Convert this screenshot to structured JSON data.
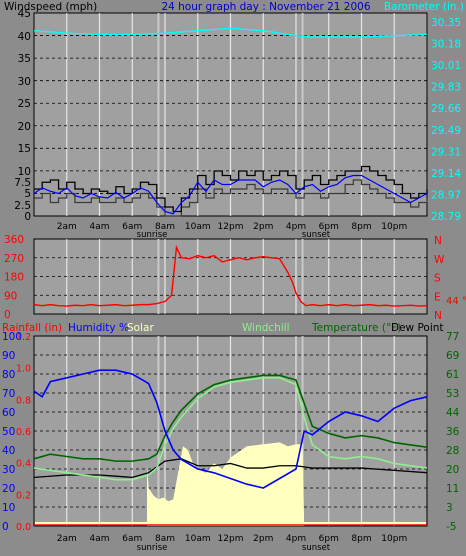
{
  "colors": {
    "background": "#8c8c8c",
    "plot_bg": "#a0a0a0",
    "frame": "#000000",
    "windspeed": "#000000",
    "gust": "#3a3a3a",
    "direction": "#ff0000",
    "barometer": "#00ffff",
    "rainfall": "#ff0000",
    "humidity": "#0000ff",
    "solar": "#ffffc0",
    "windchill": "#90ee90",
    "temperature": "#006400",
    "dewpoint": "#000000",
    "sun_marker": "#c8c8c8",
    "axis_right_top": "#00ffff",
    "axis_right_bottom": "#006400",
    "axis_left_bottom": "#0000ff"
  },
  "header": {
    "left": "Windspeed (mph)",
    "center": "24 hour graph day : November 21 2006",
    "right": "Barometer (in.)"
  },
  "x_axis": {
    "ticks": [
      "2am",
      "4am",
      "6am",
      "8am",
      "10am",
      "12pm",
      "2pm",
      "4pm",
      "6pm",
      "8pm",
      "10pm"
    ],
    "sunrise": "sunrise",
    "sunset": "sunset"
  },
  "direction_panel": {
    "left_ticks": [
      "360",
      "270",
      "180",
      "90",
      "0"
    ],
    "right_labels": [
      "N",
      "W",
      "S",
      "E",
      "N"
    ],
    "current": "44 °"
  },
  "legend": {
    "rainfall": "Rainfall (in)",
    "humidity": "Humidity %",
    "solar": "Solar",
    "windchill": "Windchill",
    "temperature": "Temperature (°F)",
    "dewpoint": "Dew Point"
  },
  "bottom_axes": {
    "humidity": [
      "100",
      "90",
      "80",
      "70",
      "60",
      "50",
      "40",
      "30",
      "20",
      "10",
      "0"
    ],
    "rain": [
      "1.2",
      "1.0",
      "0.8",
      "0.6",
      "0.4",
      "0.2",
      "0.0"
    ],
    "temperature": [
      "77",
      "69",
      "61",
      "53",
      "44",
      "36",
      "28",
      "20",
      "11",
      "3",
      "-5"
    ]
  },
  "chart_data": [
    {
      "type": "line",
      "x_unit": "hour of day",
      "xlim": [
        0,
        24
      ],
      "ylim": [
        0,
        45
      ],
      "y_ticks": [
        "0",
        "2.5",
        "5",
        "7.5",
        "10",
        "15",
        "20",
        "25",
        "30",
        "35",
        "40",
        "45"
      ],
      "right_ylim": [
        28.79,
        30.35
      ],
      "right_ticks": [
        "30.35",
        "30.18",
        "30.01",
        "29.83",
        "29.66",
        "29.49",
        "29.31",
        "29.14",
        "28.97",
        "28.79"
      ],
      "series": [
        {
          "name": "Windspeed (mph)",
          "axis": "left",
          "x": [
            0,
            0.5,
            1,
            1.5,
            2,
            2.5,
            3,
            3.5,
            4,
            4.5,
            5,
            5.5,
            6,
            6.5,
            7,
            7.5,
            8,
            8.5,
            9,
            9.5,
            10,
            10.5,
            11,
            11.5,
            12,
            12.5,
            13,
            13.5,
            14,
            14.5,
            15,
            15.5,
            16,
            16.5,
            17,
            17.5,
            18,
            18.5,
            19,
            19.5,
            20,
            20.5,
            21,
            21.5,
            22,
            22.5,
            23,
            23.5,
            24
          ],
          "y": [
            6,
            7.5,
            8,
            6,
            7.5,
            6,
            5,
            6,
            5.5,
            5,
            6.5,
            5,
            6,
            7.5,
            7,
            4,
            2,
            1,
            4,
            6,
            9,
            7,
            10,
            9,
            8,
            10,
            9,
            10,
            8,
            9,
            10,
            9,
            6,
            8,
            9,
            7,
            8,
            9,
            10,
            10,
            11,
            10,
            9,
            8,
            7,
            5,
            4,
            5,
            6
          ]
        },
        {
          "name": "Wind gust",
          "axis": "left",
          "x": [
            0,
            0.5,
            1,
            1.5,
            2,
            2.5,
            3,
            3.5,
            4,
            4.5,
            5,
            5.5,
            6,
            6.5,
            7,
            7.5,
            8,
            8.5,
            9,
            9.5,
            10,
            10.5,
            11,
            11.5,
            12,
            12.5,
            13,
            13.5,
            14,
            14.5,
            15,
            15.5,
            16,
            16.5,
            17,
            17.5,
            18,
            18.5,
            19,
            19.5,
            20,
            20.5,
            21,
            21.5,
            22,
            22.5,
            23,
            23.5,
            24
          ],
          "y": [
            4,
            5,
            3,
            4,
            5,
            3,
            3,
            4,
            3,
            3,
            4,
            3,
            4,
            5,
            4,
            2,
            0,
            0,
            2,
            3,
            6,
            4,
            6,
            5,
            6,
            6,
            7,
            6,
            5,
            6,
            6,
            5,
            4,
            5,
            5,
            4,
            5,
            5,
            7,
            8,
            7,
            6,
            5,
            4,
            3,
            3,
            2,
            3,
            4
          ]
        },
        {
          "name": "Barometer (in.)",
          "axis": "right",
          "x": [
            0,
            2,
            4,
            6,
            8,
            10,
            11,
            12,
            13,
            14,
            15,
            16,
            17,
            18,
            20,
            22,
            24
          ],
          "y": [
            30.28,
            30.26,
            30.25,
            30.25,
            30.26,
            30.28,
            30.29,
            30.3,
            30.29,
            30.28,
            30.26,
            30.24,
            30.23,
            30.23,
            30.23,
            30.24,
            30.25
          ]
        }
      ]
    },
    {
      "type": "scatter",
      "x_unit": "hour of day",
      "xlim": [
        0,
        24
      ],
      "ylim": [
        0,
        360
      ],
      "series": [
        {
          "name": "Wind direction",
          "x": [
            0,
            0.5,
            1,
            1.5,
            2,
            2.5,
            3,
            3.5,
            4,
            4.5,
            5,
            5.5,
            6,
            6.5,
            7,
            7.5,
            8,
            8.4,
            8.7,
            9,
            9.5,
            10,
            10.5,
            11,
            11.5,
            12,
            12.5,
            13,
            13.5,
            14,
            14.5,
            15,
            15.5,
            15.8,
            16,
            16.3,
            16.6,
            17,
            17.5,
            18,
            18.5,
            19,
            19.5,
            20,
            20.5,
            21,
            21.5,
            22,
            22.5,
            23,
            23.5,
            24
          ],
          "y": [
            45,
            40,
            45,
            40,
            38,
            42,
            40,
            45,
            40,
            42,
            45,
            40,
            42,
            45,
            45,
            50,
            60,
            90,
            320,
            270,
            265,
            280,
            270,
            280,
            250,
            260,
            270,
            260,
            270,
            275,
            270,
            265,
            200,
            150,
            100,
            60,
            40,
            45,
            40,
            45,
            40,
            45,
            40,
            42,
            45,
            40,
            42,
            38,
            40,
            42,
            38,
            40
          ]
        }
      ]
    },
    {
      "type": "line",
      "x_unit": "hour of day",
      "xlim": [
        0,
        24
      ],
      "ylim": [
        0,
        100
      ],
      "right_ylim": [
        -5,
        77
      ],
      "series": [
        {
          "name": "Humidity %",
          "axis": "left",
          "x": [
            0,
            0.5,
            1,
            2,
            3,
            4,
            5,
            6,
            7,
            7.5,
            8,
            8.5,
            9,
            10,
            11,
            12,
            13,
            14,
            15,
            16,
            16.5,
            17,
            18,
            19,
            20,
            21,
            22,
            23,
            24
          ],
          "y": [
            71,
            68,
            76,
            78,
            80,
            82,
            82,
            80,
            75,
            65,
            50,
            40,
            35,
            30,
            28,
            25,
            22,
            20,
            25,
            30,
            50,
            48,
            55,
            60,
            58,
            55,
            62,
            66,
            68
          ]
        },
        {
          "name": "Temperature (°F)",
          "axis": "right",
          "x": [
            0,
            1,
            2,
            3,
            4,
            5,
            6,
            7,
            7.5,
            8,
            8.5,
            9,
            10,
            11,
            12,
            13,
            14,
            15,
            16,
            16.5,
            17,
            18,
            19,
            20,
            21,
            22,
            23,
            24
          ],
          "y": [
            24,
            26,
            25,
            24,
            24,
            23,
            23,
            24,
            26,
            34,
            40,
            45,
            52,
            56,
            58,
            59,
            60,
            60,
            58,
            48,
            38,
            35,
            33,
            34,
            33,
            31,
            30,
            29
          ]
        },
        {
          "name": "Windchill",
          "axis": "right",
          "x": [
            0,
            1,
            2,
            3,
            4,
            5,
            6,
            7,
            7.5,
            8,
            8.5,
            9,
            10,
            11,
            12,
            13,
            14,
            15,
            16,
            16.5,
            17,
            18,
            19,
            20,
            21,
            22,
            23,
            24
          ],
          "y": [
            20,
            19,
            18,
            17,
            16,
            15,
            15,
            17,
            20,
            30,
            37,
            42,
            50,
            55,
            57,
            58,
            59,
            59,
            56,
            42,
            30,
            25,
            24,
            25,
            24,
            22,
            21,
            20
          ]
        },
        {
          "name": "Dew Point",
          "axis": "right",
          "x": [
            0,
            2,
            4,
            6,
            7,
            8,
            9,
            10,
            11,
            12,
            13,
            14,
            15,
            16,
            17,
            18,
            20,
            22,
            24
          ],
          "y": [
            16,
            17,
            17,
            16,
            18,
            23,
            24,
            21,
            21,
            22,
            20,
            20,
            21,
            21,
            20,
            20,
            20,
            19,
            18
          ]
        },
        {
          "name": "Solar",
          "axis": "left",
          "kind": "area",
          "x": [
            6.9,
            7.0,
            7.3,
            7.6,
            7.9,
            8.2,
            8.5,
            8.8,
            9.1,
            9.4,
            9.7,
            10.0,
            10.5,
            11,
            11.5,
            12,
            13,
            14,
            15,
            15.5,
            16,
            16.4,
            16.5
          ],
          "y": [
            32,
            20,
            16,
            14,
            15,
            13,
            14,
            28,
            42,
            40,
            33,
            30,
            28,
            33,
            30,
            36,
            42,
            43,
            44,
            42,
            43,
            43,
            0
          ]
        },
        {
          "name": "Rainfall (in)",
          "axis": "rain",
          "x": [
            0,
            24
          ],
          "y": [
            0,
            0
          ]
        }
      ]
    }
  ]
}
